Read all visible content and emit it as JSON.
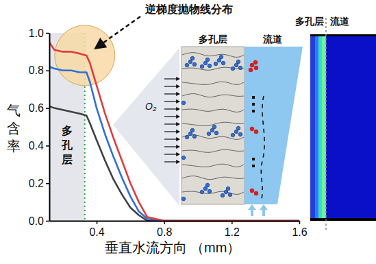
{
  "chart_data": {
    "type": "line",
    "x_label": "垂直水流方向 （mm）",
    "y_label": "气含率",
    "callout": "逆梯度抛物线分布",
    "porous_region": {
      "label": "多孔层",
      "x": [
        0.12,
        0.33
      ]
    },
    "inset": {
      "porous_label": "多孔层",
      "channel_label": "流道",
      "gas_label": "O₂"
    },
    "side_panel": {
      "porous_label": "多孔层",
      "channel_label": "流道"
    },
    "x": [
      0.12,
      0.15,
      0.2,
      0.25,
      0.3,
      0.34,
      0.36,
      0.4,
      0.45,
      0.5,
      0.55,
      0.6,
      0.65,
      0.7,
      0.8,
      1.2,
      1.6
    ],
    "xlim": [
      0.12,
      1.6
    ],
    "ylim": [
      0,
      1
    ],
    "xticks": [
      0.4,
      0.8,
      1.2,
      1.6
    ],
    "yticks": [
      {
        "value": 0,
        "label": "0.0"
      },
      {
        "value": 0.2,
        "label": "0.2"
      },
      {
        "value": 0.4,
        "label": "0.4"
      },
      {
        "value": 0.6,
        "label": "0.6"
      },
      {
        "value": 0.8,
        "label": "0.8"
      },
      {
        "value": 1,
        "label": "1.0"
      }
    ],
    "series": [
      {
        "color": "#404040",
        "values": [
          0.61,
          0.6,
          0.59,
          0.58,
          0.57,
          0.56,
          0.52,
          0.43,
          0.32,
          0.22,
          0.14,
          0.07,
          0.03,
          0.0,
          0,
          0,
          0
        ]
      },
      {
        "color": "#2f6fd6",
        "values": [
          0.82,
          0.81,
          0.8,
          0.8,
          0.79,
          0.79,
          0.74,
          0.6,
          0.46,
          0.34,
          0.23,
          0.13,
          0.05,
          0.01,
          0,
          0,
          0
        ]
      },
      {
        "color": "#e03c3c",
        "values": [
          0.95,
          0.91,
          0.9,
          0.9,
          0.89,
          0.88,
          0.84,
          0.72,
          0.57,
          0.44,
          0.32,
          0.2,
          0.1,
          0.02,
          0,
          0,
          0
        ]
      }
    ]
  }
}
